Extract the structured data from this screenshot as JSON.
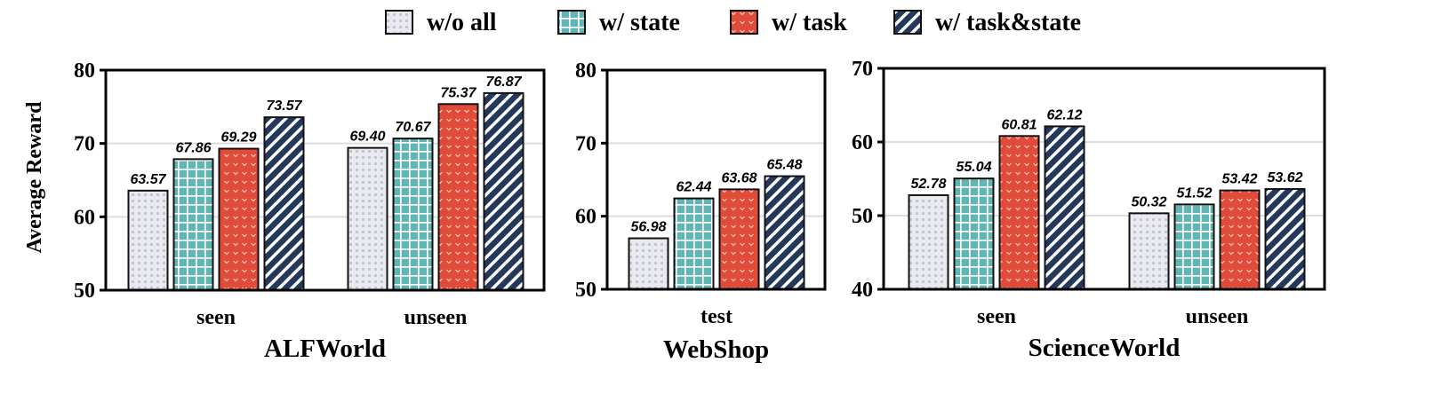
{
  "legend": [
    {
      "label": "w/o all",
      "pattern": "dots",
      "color": "#e6e6ee"
    },
    {
      "label": "w/ state",
      "pattern": "grid",
      "color": "#5fb3b3"
    },
    {
      "label": "w/ task",
      "pattern": "chevron",
      "color": "#e04b3a"
    },
    {
      "label": "w/ task&state",
      "pattern": "stripes",
      "color": "#24385c"
    }
  ],
  "ylabel": "Average Reward",
  "chart_data": [
    {
      "type": "bar",
      "title": "ALFWorld",
      "categories": [
        "seen",
        "unseen"
      ],
      "ylim": [
        50,
        80
      ],
      "yticks": [
        50,
        60,
        70,
        80
      ],
      "grid": true,
      "series": [
        {
          "name": "w/o all",
          "values": [
            63.57,
            69.4
          ]
        },
        {
          "name": "w/ state",
          "values": [
            67.86,
            70.67
          ]
        },
        {
          "name": "w/ task",
          "values": [
            69.29,
            75.37
          ]
        },
        {
          "name": "w/ task&state",
          "values": [
            73.57,
            76.87
          ]
        }
      ]
    },
    {
      "type": "bar",
      "title": "WebShop",
      "categories": [
        "test"
      ],
      "ylim": [
        50,
        80
      ],
      "yticks": [
        50,
        60,
        70,
        80
      ],
      "grid": true,
      "series": [
        {
          "name": "w/o all",
          "values": [
            56.98
          ]
        },
        {
          "name": "w/ state",
          "values": [
            62.44
          ]
        },
        {
          "name": "w/ task",
          "values": [
            63.68
          ]
        },
        {
          "name": "w/ task&state",
          "values": [
            65.48
          ]
        }
      ]
    },
    {
      "type": "bar",
      "title": "ScienceWorld",
      "categories": [
        "seen",
        "unseen"
      ],
      "ylim": [
        40,
        70
      ],
      "yticks": [
        40,
        50,
        60,
        70
      ],
      "grid": true,
      "series": [
        {
          "name": "w/o all",
          "values": [
            52.78,
            50.32
          ]
        },
        {
          "name": "w/ state",
          "values": [
            55.04,
            51.52
          ]
        },
        {
          "name": "w/ task",
          "values": [
            60.81,
            53.42
          ]
        },
        {
          "name": "w/ task&state",
          "values": [
            62.12,
            53.62
          ]
        }
      ]
    }
  ]
}
